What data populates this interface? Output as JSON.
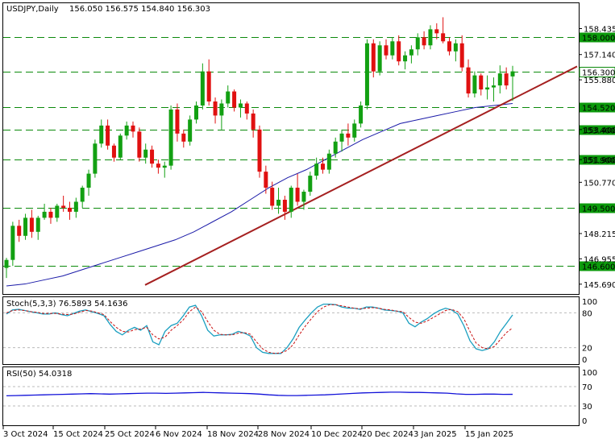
{
  "chart_data": [
    {
      "type": "candlestick",
      "title": "USDJPY,Daily",
      "ohlc_label": "156.050 156.575 154.840 156.303",
      "ylim": [
        145.2,
        159.7
      ],
      "price_ticks": [
        "158.435",
        "157.140",
        "155.880",
        "153.400",
        "151.900",
        "150.770",
        "148.215",
        "146.955",
        "145.690"
      ],
      "x_tick_labels": [
        "3 Oct 2024",
        "15 Oct 2024",
        "25 Oct 2024",
        "6 Nov 2024",
        "18 Nov 2024",
        "28 Nov 2024",
        "10 Dec 2024",
        "20 Dec 2024",
        "3 Jan 2025",
        "15 Jan 2025"
      ],
      "levels": [
        {
          "value": 158.0,
          "label": "158.000"
        },
        {
          "value": 156.3,
          "label": "156.300",
          "current": true
        },
        {
          "value": 154.52,
          "label": "154.520"
        },
        {
          "value": 153.4,
          "label": "153.400"
        },
        {
          "value": 151.9,
          "label": "151.900"
        },
        {
          "value": 149.5,
          "label": "149.500"
        },
        {
          "value": 146.6,
          "label": "146.600"
        }
      ],
      "trendline": {
        "start": 145.65,
        "end": 156.55
      },
      "moving_average": [
        145.6,
        145.7,
        145.9,
        146.1,
        146.4,
        146.7,
        147.0,
        147.3,
        147.6,
        147.9,
        148.3,
        148.8,
        149.3,
        149.9,
        150.5,
        151.0,
        151.4,
        151.9,
        152.4,
        152.9,
        153.3,
        153.7,
        153.9,
        154.1,
        154.3,
        154.5,
        154.6,
        154.7
      ],
      "candles": [
        [
          146.5,
          147.0,
          146.0,
          146.9
        ],
        [
          146.9,
          148.8,
          146.6,
          148.6
        ],
        [
          148.6,
          148.9,
          147.8,
          148.1
        ],
        [
          148.1,
          149.2,
          147.9,
          149.0
        ],
        [
          149.0,
          149.4,
          148.0,
          148.3
        ],
        [
          148.3,
          149.1,
          147.9,
          149.0
        ],
        [
          149.0,
          149.7,
          148.9,
          149.3
        ],
        [
          149.3,
          149.5,
          148.7,
          149.0
        ],
        [
          149.0,
          149.7,
          148.8,
          149.6
        ],
        [
          149.6,
          150.1,
          149.3,
          149.5
        ],
        [
          149.5,
          149.8,
          148.9,
          149.3
        ],
        [
          149.3,
          150.0,
          149.0,
          149.8
        ],
        [
          149.8,
          150.6,
          149.5,
          150.5
        ],
        [
          150.5,
          151.4,
          150.1,
          151.2
        ],
        [
          151.2,
          152.9,
          151.0,
          152.7
        ],
        [
          152.7,
          153.9,
          152.5,
          153.6
        ],
        [
          153.6,
          153.9,
          152.4,
          152.6
        ],
        [
          152.6,
          152.7,
          151.8,
          152.0
        ],
        [
          152.0,
          153.2,
          151.9,
          153.1
        ],
        [
          153.1,
          153.8,
          152.9,
          153.6
        ],
        [
          153.6,
          153.8,
          153.0,
          153.3
        ],
        [
          153.3,
          153.5,
          151.8,
          152.0
        ],
        [
          152.0,
          152.7,
          151.7,
          152.4
        ],
        [
          152.4,
          152.6,
          151.5,
          151.7
        ],
        [
          151.7,
          151.9,
          151.2,
          151.5
        ],
        [
          151.5,
          151.8,
          151.0,
          151.6
        ],
        [
          151.6,
          154.6,
          151.4,
          154.4
        ],
        [
          154.4,
          154.7,
          152.8,
          153.2
        ],
        [
          153.2,
          153.4,
          152.5,
          152.8
        ],
        [
          152.8,
          154.1,
          152.6,
          153.9
        ],
        [
          153.9,
          154.8,
          153.7,
          154.6
        ],
        [
          154.6,
          156.7,
          154.4,
          156.3
        ],
        [
          156.3,
          156.9,
          154.6,
          154.8
        ],
        [
          154.8,
          155.0,
          153.7,
          154.1
        ],
        [
          154.1,
          154.9,
          153.4,
          154.7
        ],
        [
          154.7,
          155.6,
          154.5,
          155.3
        ],
        [
          155.3,
          155.4,
          154.3,
          154.5
        ],
        [
          154.5,
          154.9,
          154.0,
          154.7
        ],
        [
          154.7,
          154.8,
          153.9,
          154.2
        ],
        [
          154.2,
          154.4,
          153.0,
          153.4
        ],
        [
          153.4,
          153.6,
          151.0,
          151.3
        ],
        [
          151.3,
          151.6,
          150.2,
          150.5
        ],
        [
          150.5,
          150.8,
          149.4,
          149.6
        ],
        [
          149.6,
          150.5,
          149.2,
          149.9
        ],
        [
          149.9,
          150.1,
          148.9,
          149.3
        ],
        [
          149.3,
          150.6,
          149.0,
          150.5
        ],
        [
          150.5,
          151.2,
          149.6,
          149.8
        ],
        [
          149.8,
          150.4,
          149.4,
          150.3
        ],
        [
          150.3,
          151.3,
          150.1,
          151.1
        ],
        [
          151.1,
          152.0,
          150.9,
          151.7
        ],
        [
          151.7,
          152.0,
          151.2,
          151.4
        ],
        [
          151.4,
          152.4,
          151.2,
          152.2
        ],
        [
          152.2,
          153.0,
          152.0,
          152.8
        ],
        [
          152.8,
          153.4,
          152.3,
          153.2
        ],
        [
          153.2,
          153.7,
          152.6,
          153.0
        ],
        [
          153.0,
          153.9,
          152.8,
          153.7
        ],
        [
          153.7,
          154.8,
          153.5,
          154.6
        ],
        [
          154.6,
          157.9,
          154.4,
          157.7
        ],
        [
          157.7,
          157.9,
          156.0,
          156.3
        ],
        [
          156.3,
          157.8,
          156.1,
          157.6
        ],
        [
          157.6,
          157.9,
          156.9,
          157.1
        ],
        [
          157.1,
          158.0,
          156.9,
          157.8
        ],
        [
          157.8,
          158.1,
          156.6,
          156.8
        ],
        [
          156.8,
          157.3,
          156.4,
          157.1
        ],
        [
          157.1,
          157.6,
          156.7,
          157.4
        ],
        [
          157.4,
          158.2,
          157.1,
          158.0
        ],
        [
          158.0,
          158.3,
          157.4,
          157.6
        ],
        [
          157.6,
          158.6,
          157.4,
          158.4
        ],
        [
          158.4,
          158.7,
          157.9,
          158.2
        ],
        [
          158.2,
          159.0,
          157.7,
          157.8
        ],
        [
          157.8,
          158.0,
          157.1,
          157.3
        ],
        [
          157.3,
          157.9,
          156.8,
          157.7
        ],
        [
          157.7,
          158.1,
          156.3,
          156.5
        ],
        [
          156.5,
          156.9,
          155.0,
          155.2
        ],
        [
          155.2,
          156.3,
          155.0,
          156.1
        ],
        [
          156.1,
          156.2,
          155.1,
          155.4
        ],
        [
          155.4,
          156.1,
          154.9,
          155.5
        ],
        [
          155.5,
          156.0,
          154.8,
          155.6
        ],
        [
          155.6,
          156.6,
          155.2,
          156.2
        ],
        [
          156.2,
          156.5,
          155.4,
          155.6
        ],
        [
          156.05,
          156.575,
          154.84,
          156.303
        ]
      ]
    },
    {
      "type": "line",
      "title": "Stoch(5,3,3) 76.5893 54.1636",
      "ylim": [
        0,
        100
      ],
      "y_ticks": [
        "100",
        "80",
        "20",
        "0"
      ],
      "levels": [
        80,
        20
      ],
      "series": [
        {
          "color": "#1a9fc0",
          "values": [
            78,
            85,
            86,
            84,
            82,
            80,
            78,
            78,
            80,
            77,
            75,
            79,
            83,
            85,
            82,
            79,
            75,
            60,
            48,
            42,
            50,
            55,
            50,
            58,
            30,
            25,
            48,
            58,
            62,
            75,
            90,
            93,
            75,
            50,
            40,
            42,
            42,
            43,
            48,
            45,
            40,
            20,
            12,
            10,
            10,
            10,
            20,
            35,
            55,
            68,
            80,
            90,
            95,
            95,
            94,
            90,
            88,
            88,
            86,
            90,
            90,
            88,
            85,
            84,
            83,
            80,
            62,
            56,
            64,
            70,
            78,
            84,
            88,
            85,
            78,
            58,
            32,
            18,
            15,
            18,
            30,
            48,
            62,
            76.5893
          ]
        },
        {
          "color": "#c81010",
          "dashed": true,
          "values": [
            80,
            84,
            85,
            84,
            82,
            81,
            79,
            79,
            79,
            78,
            77,
            78,
            81,
            84,
            83,
            80,
            77,
            65,
            55,
            48,
            47,
            51,
            52,
            55,
            42,
            35,
            38,
            50,
            58,
            68,
            82,
            90,
            82,
            65,
            50,
            43,
            42,
            42,
            45,
            46,
            43,
            30,
            18,
            12,
            10,
            11,
            15,
            25,
            42,
            57,
            70,
            82,
            90,
            94,
            94,
            92,
            90,
            88,
            87,
            88,
            89,
            88,
            86,
            85,
            83,
            82,
            72,
            64,
            62,
            66,
            72,
            78,
            84,
            86,
            82,
            70,
            48,
            28,
            20,
            18,
            22,
            34,
            46,
            54.1636
          ]
        }
      ]
    },
    {
      "type": "line",
      "title": "RSI(50) 54.0318",
      "ylim": [
        0,
        100
      ],
      "y_ticks": [
        "100",
        "70",
        "30",
        "0"
      ],
      "levels": [
        70,
        30
      ],
      "series": [
        {
          "color": "#1010d8",
          "values": [
            51,
            51.5,
            52,
            52.5,
            53,
            53.5,
            54,
            54.5,
            55,
            55.5,
            55,
            54.5,
            55,
            55.5,
            56,
            56.5,
            56.5,
            56,
            56.5,
            57,
            57.5,
            58,
            57.5,
            57,
            56.5,
            56,
            55.5,
            54.5,
            53,
            52,
            51.5,
            51.5,
            52,
            52.5,
            53,
            54,
            55,
            56,
            57,
            57.5,
            58,
            58.5,
            58.5,
            58,
            58,
            57.5,
            57,
            56.5,
            55,
            54,
            54,
            54.5,
            54.5,
            54,
            54.0318
          ]
        }
      ]
    }
  ]
}
